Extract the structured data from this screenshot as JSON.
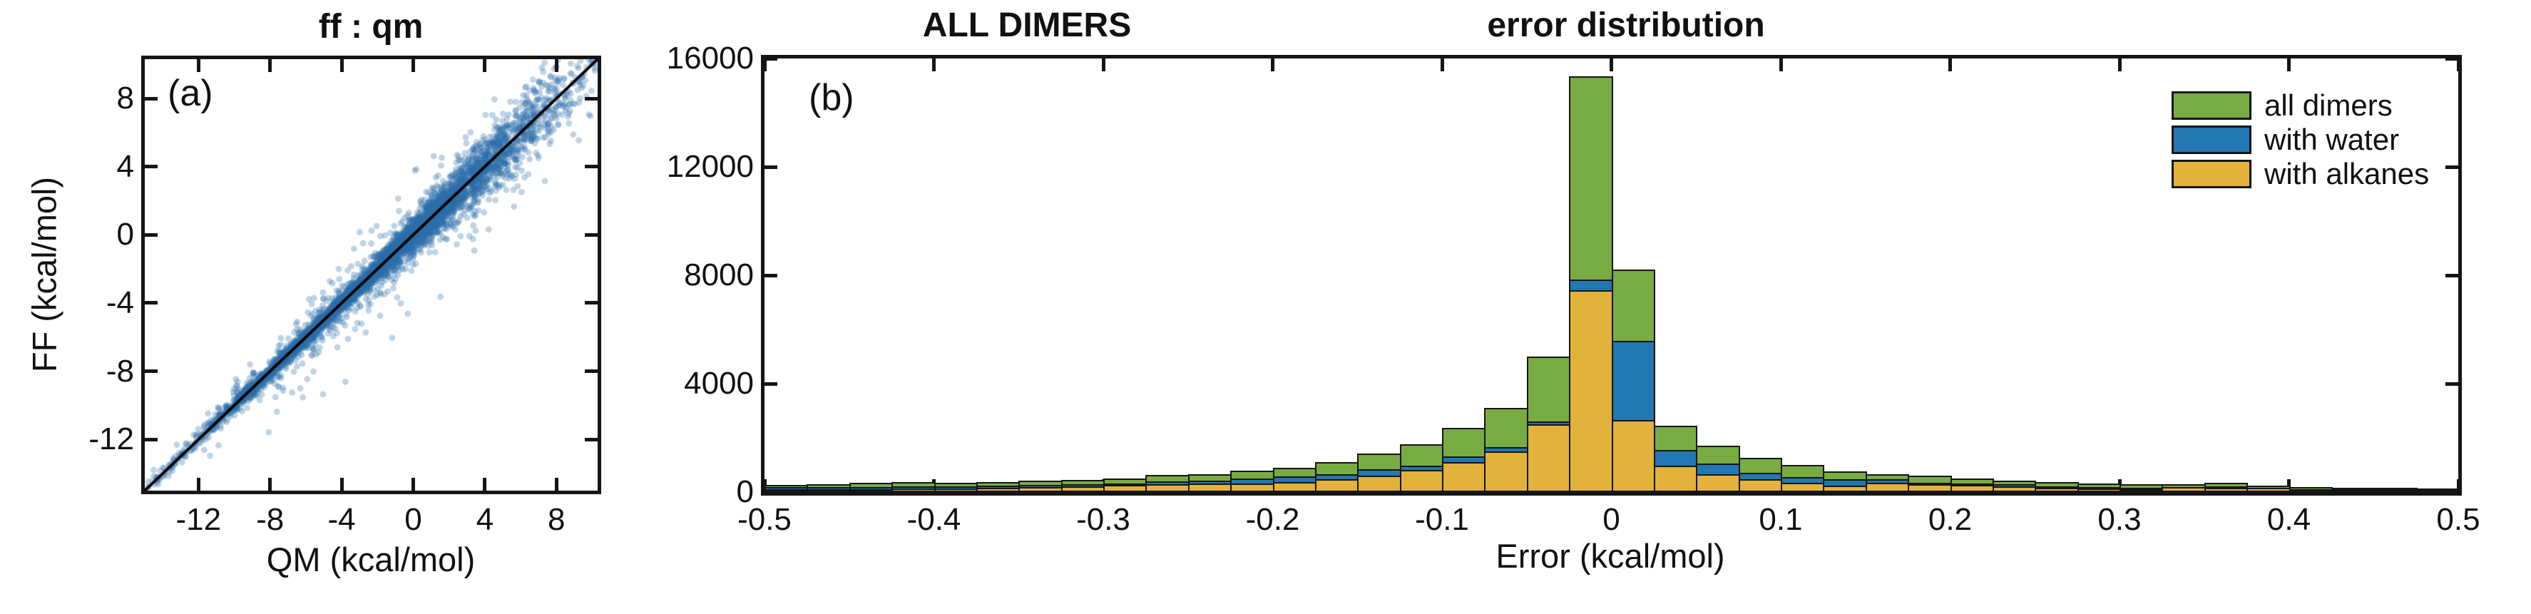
{
  "figure": {
    "panel_a": {
      "label": "(a)",
      "title": "ff : qm",
      "xlabel": "QM (kcal/mol)",
      "ylabel": "FF (kcal/mol)"
    },
    "panel_b": {
      "label": "(b)",
      "title_left": "ALL DIMERS",
      "title_right": "error distribution",
      "xlabel": "Error (kcal/mol)",
      "legend": [
        {
          "label": "all dimers",
          "color": "#78ac42"
        },
        {
          "label": "with water",
          "color": "#2377b2"
        },
        {
          "label": "with alkanes",
          "color": "#e2b23c"
        }
      ]
    }
  },
  "chart_data": [
    {
      "type": "scatter",
      "panel": "a",
      "title": "ff : qm",
      "xlabel": "QM (kcal/mol)",
      "ylabel": "FF (kcal/mol)",
      "xlim": [
        -15,
        10.3
      ],
      "ylim": [
        -15,
        10.3
      ],
      "xticks": [
        -12,
        -8,
        -4,
        0,
        4,
        8
      ],
      "yticks": [
        -12,
        -8,
        -4,
        0,
        4,
        8
      ],
      "identity_line": true,
      "marker_color": "#2a6eaa",
      "marker_alpha": 0.3,
      "marker_radius_px": 4.4,
      "generator": {
        "n_points": 5200,
        "seed": 7,
        "x_mean": -1.5,
        "x_sd": 5.0,
        "noise_base_sd": 0.22,
        "noise_slope_above_minus3": 0.085,
        "halo_fraction": 0.22,
        "halo_sd": 0.85,
        "outlier_prob": 0.015,
        "outlier_sd": 1.9
      }
    },
    {
      "type": "bar",
      "subtype": "overlaid-histogram",
      "panel": "b",
      "title_left": "ALL DIMERS",
      "title_right": "error distribution",
      "xlabel": "Error (kcal/mol)",
      "ylabel": "",
      "xlim": [
        -0.5,
        0.5
      ],
      "ylim": [
        0,
        16000
      ],
      "bin_start": -0.5,
      "bin_width": 0.025,
      "n_bins": 40,
      "xtick_values": [
        -0.5,
        -0.4,
        -0.3,
        -0.2,
        -0.1,
        0,
        0.1,
        0.2,
        0.3,
        0.4,
        0.5
      ],
      "xtick_labels": [
        "-0.5",
        "-0.4",
        "-0.3",
        "-0.2",
        "-0.1",
        "0",
        "0.1",
        "0.2",
        "0.3",
        "0.4",
        "0.5"
      ],
      "ytick_values": [
        0,
        4000,
        8000,
        12000,
        16000
      ],
      "ytick_labels": [
        "0",
        "4000",
        "8000",
        "12000",
        "16000"
      ],
      "legend_position": "top-right",
      "series": [
        {
          "name": "all dimers",
          "color": "#78ac42",
          "values": [
            260,
            290,
            350,
            375,
            340,
            375,
            415,
            440,
            500,
            640,
            660,
            790,
            900,
            1100,
            1420,
            1760,
            2370,
            3110,
            5000,
            15350,
            8220,
            2460,
            1710,
            1260,
            1010,
            770,
            660,
            615,
            500,
            415,
            370,
            325,
            280,
            290,
            350,
            245,
            175,
            170,
            150,
            130
          ]
        },
        {
          "name": "with water",
          "color": "#2377b2",
          "values": [
            175,
            185,
            175,
            220,
            220,
            235,
            255,
            280,
            320,
            395,
            415,
            500,
            570,
            660,
            835,
            965,
            1315,
            1670,
            2600,
            7850,
            5570,
            1550,
            1055,
            705,
            555,
            480,
            465,
            350,
            310,
            290,
            220,
            175,
            150,
            185,
            220,
            165,
            115,
            110,
            95,
            85
          ]
        },
        {
          "name": "with alkanes",
          "color": "#e2b23c",
          "values": [
            105,
            115,
            115,
            130,
            140,
            160,
            175,
            210,
            255,
            280,
            310,
            325,
            370,
            480,
            615,
            810,
            1100,
            1490,
            2500,
            7460,
            2660,
            970,
            660,
            480,
            335,
            245,
            350,
            280,
            260,
            220,
            165,
            130,
            110,
            175,
            160,
            155,
            100,
            90,
            80,
            70
          ]
        }
      ]
    }
  ]
}
